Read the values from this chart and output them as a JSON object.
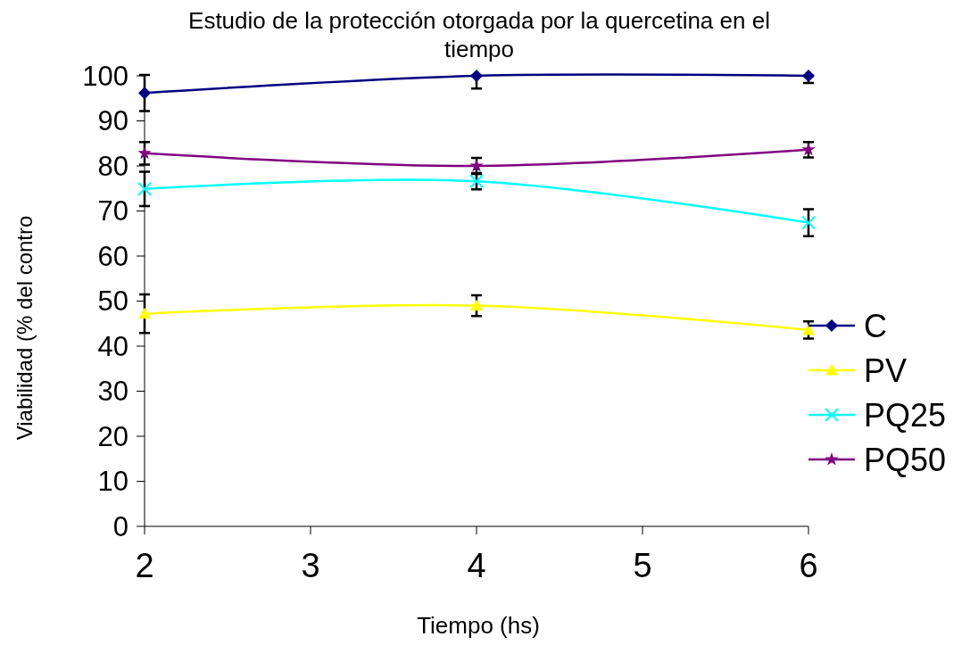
{
  "chart_data": {
    "type": "line",
    "title": "Estudio de la protección otorgada por la quercetina en el tiempo",
    "xlabel": "Tiempo (hs)",
    "ylabel": "Viabilidad (% del contro",
    "x": [
      2,
      4,
      6
    ],
    "xlim": [
      2,
      6
    ],
    "xticks": [
      2,
      3,
      4,
      5,
      6
    ],
    "ylim": [
      0,
      100
    ],
    "yticks": [
      0,
      10,
      20,
      30,
      40,
      50,
      60,
      70,
      80,
      90,
      100
    ],
    "grid": false,
    "legend": "right",
    "series": [
      {
        "name": "C",
        "color": "#000080",
        "marker": "diamond",
        "values": [
          96.2,
          100,
          100
        ],
        "errors": [
          4,
          [
            97.2,
            100
          ],
          [
            98.4,
            100
          ]
        ]
      },
      {
        "name": "PV",
        "color": "#ffff00",
        "marker": "triangle",
        "values": [
          47.2,
          49,
          43.6
        ],
        "errors": [
          4.3,
          2.3,
          1.9
        ]
      },
      {
        "name": "PQ25",
        "color": "#00ffff",
        "marker": "cross",
        "values": [
          74.9,
          76.6,
          67.4
        ],
        "errors": [
          3.8,
          1.8,
          3
        ]
      },
      {
        "name": "PQ50",
        "color": "#800080",
        "marker": "star",
        "values": [
          82.8,
          80,
          83.6
        ],
        "errors": [
          2.5,
          1.8,
          1.7
        ]
      }
    ]
  }
}
